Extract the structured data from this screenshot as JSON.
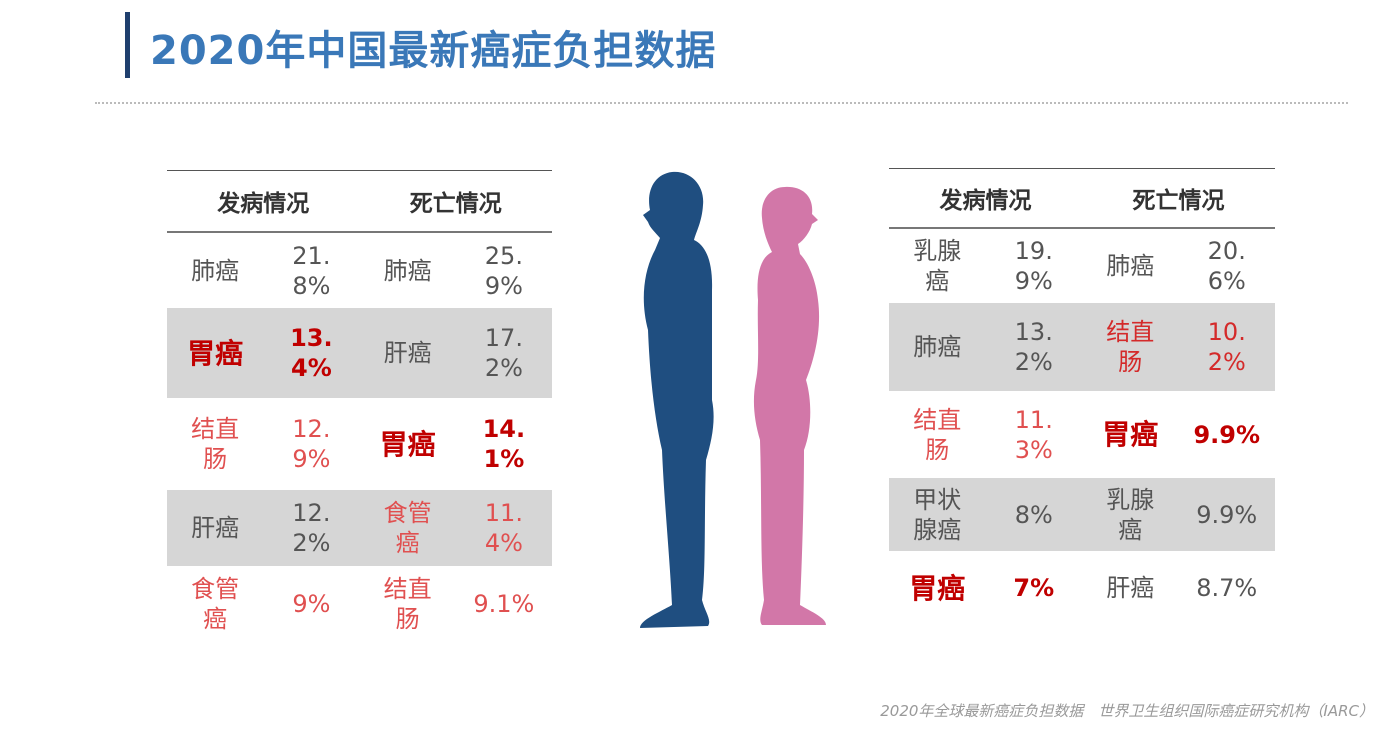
{
  "header": {
    "title": "2020年中国最新癌症负担数据"
  },
  "tables": [
    {
      "headers": [
        "发病情况",
        "死亡情况"
      ],
      "rows": [
        {
          "cells": [
            {
              "text": "肺癌",
              "color": "#555555",
              "bold": false
            },
            {
              "text": "21.8%",
              "color": "#555555",
              "bold": false
            },
            {
              "text": "肺癌",
              "color": "#555555",
              "bold": false
            },
            {
              "text": "25.9%",
              "color": "#555555",
              "bold": false
            }
          ]
        },
        {
          "cells": [
            {
              "text": "胃癌",
              "color": "#c00000",
              "bold": true
            },
            {
              "text": "13.4%",
              "color": "#c00000",
              "bold": true
            },
            {
              "text": "肝癌",
              "color": "#555555",
              "bold": false
            },
            {
              "text": "17.2%",
              "color": "#555555",
              "bold": false
            }
          ]
        },
        {
          "cells": [
            {
              "text": "结直肠",
              "color": "#e05050",
              "bold": false
            },
            {
              "text": "12.9%",
              "color": "#e05050",
              "bold": false
            },
            {
              "text": "胃癌",
              "color": "#c00000",
              "bold": true
            },
            {
              "text": "14.1%",
              "color": "#c00000",
              "bold": true
            }
          ]
        },
        {
          "cells": [
            {
              "text": "肝癌",
              "color": "#555555",
              "bold": false
            },
            {
              "text": "12.2%",
              "color": "#555555",
              "bold": false
            },
            {
              "text": "食管癌",
              "color": "#e05050",
              "bold": false
            },
            {
              "text": "11.4%",
              "color": "#e05050",
              "bold": false
            }
          ]
        },
        {
          "cells": [
            {
              "text": "食管癌",
              "color": "#e05050",
              "bold": false
            },
            {
              "text": "9%",
              "color": "#e05050",
              "bold": false
            },
            {
              "text": "结直肠",
              "color": "#e05050",
              "bold": false
            },
            {
              "text": "9.1%",
              "color": "#e05050",
              "bold": false
            }
          ]
        }
      ]
    },
    {
      "headers": [
        "发病情况",
        "死亡情况"
      ],
      "rows": [
        {
          "cells": [
            {
              "text": "乳腺癌",
              "color": "#555555",
              "bold": false
            },
            {
              "text": "19.9%",
              "color": "#555555",
              "bold": false
            },
            {
              "text": "肺癌",
              "color": "#555555",
              "bold": false
            },
            {
              "text": "20.6%",
              "color": "#555555",
              "bold": false
            }
          ]
        },
        {
          "cells": [
            {
              "text": "肺癌",
              "color": "#555555",
              "bold": false
            },
            {
              "text": "13.2%",
              "color": "#555555",
              "bold": false
            },
            {
              "text": "结直肠",
              "color": "#d42a2a",
              "bold": false
            },
            {
              "text": "10.2%",
              "color": "#d42a2a",
              "bold": false
            }
          ]
        },
        {
          "cells": [
            {
              "text": "结直肠",
              "color": "#e05050",
              "bold": false
            },
            {
              "text": "11.3%",
              "color": "#e05050",
              "bold": false
            },
            {
              "text": "胃癌",
              "color": "#c00000",
              "bold": true
            },
            {
              "text": "9.9%",
              "color": "#c00000",
              "bold": true
            }
          ]
        },
        {
          "cells": [
            {
              "text": "甲状腺癌",
              "color": "#555555",
              "bold": false
            },
            {
              "text": "8%",
              "color": "#555555",
              "bold": false
            },
            {
              "text": "乳腺癌",
              "color": "#555555",
              "bold": false
            },
            {
              "text": "9.9%",
              "color": "#555555",
              "bold": false
            }
          ]
        },
        {
          "cells": [
            {
              "text": "胃癌",
              "color": "#c00000",
              "bold": true
            },
            {
              "text": "7%",
              "color": "#c00000",
              "bold": true
            },
            {
              "text": "肝癌",
              "color": "#555555",
              "bold": false
            },
            {
              "text": "8.7%",
              "color": "#555555",
              "bold": false
            }
          ]
        }
      ]
    }
  ],
  "footer": {
    "source": "2020年全球最新癌症负担数据　世界卫生组织国际癌症研究机构（IARC）"
  }
}
